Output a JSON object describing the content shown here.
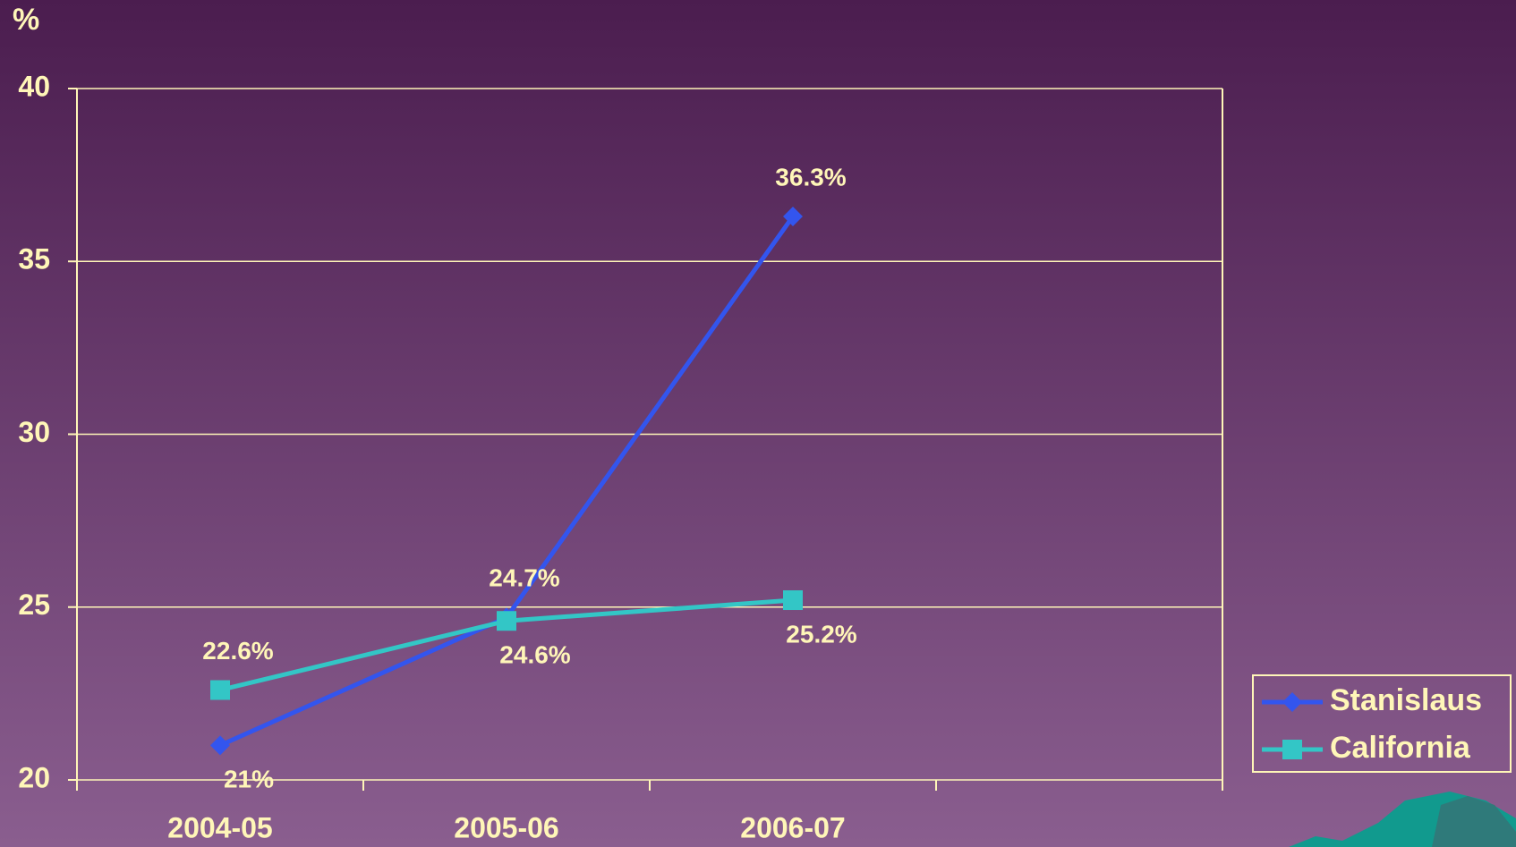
{
  "chart_data": {
    "type": "line",
    "y_label": "%",
    "categories": [
      "2004-05",
      "2005-06",
      "2006-07",
      null
    ],
    "series": [
      {
        "name": "Stanislaus",
        "color": "#3355ee",
        "marker": "diamond",
        "values": [
          21,
          24.7,
          36.3,
          null
        ],
        "value_labels": [
          "21%",
          "24.7%",
          "36.3%",
          null
        ]
      },
      {
        "name": "California",
        "color": "#33c6c6",
        "marker": "square",
        "values": [
          22.6,
          24.6,
          25.2,
          null
        ],
        "value_labels": [
          "22.6%",
          "24.6%",
          "25.2%",
          null
        ]
      }
    ],
    "ylim": [
      20,
      40
    ],
    "yticks": [
      20,
      25,
      30,
      35,
      40
    ],
    "grid": true,
    "legend": "right"
  }
}
